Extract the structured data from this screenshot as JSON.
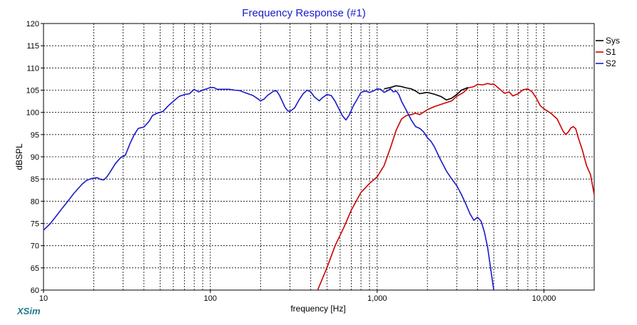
{
  "app": {
    "brand": "XSim"
  },
  "chart_data": {
    "type": "line",
    "title": "Frequency Response (#1)",
    "xlabel": "frequency [Hz]",
    "ylabel": "dBSPL",
    "x_scale": "log",
    "xlim": [
      10,
      20000
    ],
    "ylim": [
      60,
      120
    ],
    "x_tick_labels": [
      {
        "value": 10,
        "label": "10"
      },
      {
        "value": 100,
        "label": "100"
      },
      {
        "value": 1000,
        "label": "1,000"
      },
      {
        "value": 10000,
        "label": "10,000"
      }
    ],
    "y_ticks": [
      60,
      65,
      70,
      75,
      80,
      85,
      90,
      95,
      100,
      105,
      110,
      115,
      120
    ],
    "grid": true,
    "legend_position": "right",
    "series": [
      {
        "name": "Sys",
        "color": "#000000",
        "points": [
          [
            1100,
            105.3
          ],
          [
            1200,
            105.6
          ],
          [
            1300,
            106
          ],
          [
            1400,
            105.8
          ],
          [
            1500,
            105.5
          ],
          [
            1600,
            105.3
          ],
          [
            1700,
            104.8
          ],
          [
            1800,
            104.2
          ],
          [
            2000,
            104.5
          ],
          [
            2200,
            104.1
          ],
          [
            2400,
            103.6
          ],
          [
            2600,
            102.8
          ],
          [
            2800,
            103.2
          ],
          [
            3000,
            104
          ],
          [
            3200,
            105
          ],
          [
            3500,
            105.6
          ]
        ]
      },
      {
        "name": "S1",
        "color": "#cc0000",
        "points": [
          [
            440,
            60
          ],
          [
            500,
            65
          ],
          [
            560,
            70
          ],
          [
            630,
            74
          ],
          [
            700,
            78
          ],
          [
            800,
            82
          ],
          [
            900,
            84
          ],
          [
            1000,
            85.5
          ],
          [
            1100,
            88
          ],
          [
            1200,
            92
          ],
          [
            1300,
            96
          ],
          [
            1400,
            98.5
          ],
          [
            1500,
            99.3
          ],
          [
            1600,
            99.5
          ],
          [
            1700,
            99.8
          ],
          [
            1800,
            99.5
          ],
          [
            2000,
            100.6
          ],
          [
            2200,
            101.3
          ],
          [
            2500,
            102
          ],
          [
            2800,
            102.6
          ],
          [
            3000,
            103.6
          ],
          [
            3300,
            104.5
          ],
          [
            3500,
            105.5
          ],
          [
            3800,
            105.8
          ],
          [
            4000,
            106.3
          ],
          [
            4300,
            106.2
          ],
          [
            4600,
            106.5
          ],
          [
            4800,
            106.3
          ],
          [
            5000,
            106.4
          ],
          [
            5400,
            105.3
          ],
          [
            5800,
            104.3
          ],
          [
            6200,
            104.6
          ],
          [
            6500,
            103.7
          ],
          [
            7000,
            104.2
          ],
          [
            7500,
            105.1
          ],
          [
            8000,
            105.3
          ],
          [
            8500,
            104.6
          ],
          [
            9000,
            103.2
          ],
          [
            9500,
            101.5
          ],
          [
            10000,
            100.8
          ],
          [
            11000,
            99.8
          ],
          [
            12000,
            98.5
          ],
          [
            13000,
            95.8
          ],
          [
            13500,
            95
          ],
          [
            14000,
            95.6
          ],
          [
            14500,
            96.5
          ],
          [
            15000,
            96.8
          ],
          [
            15500,
            96.3
          ],
          [
            16000,
            94.5
          ],
          [
            17000,
            91.5
          ],
          [
            18000,
            88
          ],
          [
            19000,
            86
          ],
          [
            20000,
            81.5
          ]
        ]
      },
      {
        "name": "S2",
        "color": "#1a1acc",
        "points": [
          [
            10,
            73.5
          ],
          [
            11,
            75
          ],
          [
            12,
            76.8
          ],
          [
            13,
            78.5
          ],
          [
            14,
            80
          ],
          [
            15,
            81.5
          ],
          [
            16,
            82.7
          ],
          [
            17,
            83.8
          ],
          [
            18,
            84.6
          ],
          [
            19,
            85
          ],
          [
            20,
            85.2
          ],
          [
            21,
            85.3
          ],
          [
            22,
            84.9
          ],
          [
            23,
            84.8
          ],
          [
            24,
            85.5
          ],
          [
            25,
            86.5
          ],
          [
            27,
            88.5
          ],
          [
            29,
            89.8
          ],
          [
            31,
            90.4
          ],
          [
            33,
            93
          ],
          [
            35,
            95
          ],
          [
            37,
            96.4
          ],
          [
            40,
            96.7
          ],
          [
            43,
            98
          ],
          [
            45,
            99.3
          ],
          [
            48,
            99.8
          ],
          [
            52,
            100.2
          ],
          [
            56,
            101.5
          ],
          [
            60,
            102.5
          ],
          [
            65,
            103.6
          ],
          [
            70,
            104
          ],
          [
            75,
            104.2
          ],
          [
            80,
            105.2
          ],
          [
            85,
            104.6
          ],
          [
            90,
            105
          ],
          [
            95,
            105.3
          ],
          [
            100,
            105.6
          ],
          [
            105,
            105.6
          ],
          [
            110,
            105.2
          ],
          [
            120,
            105.2
          ],
          [
            130,
            105.2
          ],
          [
            140,
            105
          ],
          [
            150,
            104.9
          ],
          [
            160,
            104.5
          ],
          [
            180,
            103.8
          ],
          [
            190,
            103.2
          ],
          [
            200,
            102.6
          ],
          [
            210,
            103
          ],
          [
            220,
            103.8
          ],
          [
            240,
            104.8
          ],
          [
            250,
            104.8
          ],
          [
            260,
            103.8
          ],
          [
            270,
            102.5
          ],
          [
            280,
            101.2
          ],
          [
            290,
            100.4
          ],
          [
            300,
            100.2
          ],
          [
            320,
            101
          ],
          [
            340,
            102.8
          ],
          [
            360,
            104.2
          ],
          [
            380,
            105
          ],
          [
            400,
            104.6
          ],
          [
            420,
            103.5
          ],
          [
            450,
            102.6
          ],
          [
            470,
            103.3
          ],
          [
            500,
            104
          ],
          [
            530,
            103.8
          ],
          [
            560,
            102.5
          ],
          [
            590,
            100.8
          ],
          [
            620,
            99.2
          ],
          [
            650,
            98.3
          ],
          [
            680,
            99.4
          ],
          [
            720,
            101.5
          ],
          [
            760,
            103
          ],
          [
            800,
            104.5
          ],
          [
            850,
            104.8
          ],
          [
            900,
            104.5
          ],
          [
            950,
            104.8
          ],
          [
            1000,
            105.3
          ],
          [
            1050,
            105.2
          ],
          [
            1100,
            104.5
          ],
          [
            1150,
            104.8
          ],
          [
            1200,
            105.3
          ],
          [
            1250,
            104.6
          ],
          [
            1300,
            104.8
          ],
          [
            1350,
            104
          ],
          [
            1400,
            102.5
          ],
          [
            1500,
            100.4
          ],
          [
            1600,
            98.3
          ],
          [
            1700,
            96.8
          ],
          [
            1800,
            96.4
          ],
          [
            1900,
            95.6
          ],
          [
            2000,
            94.3
          ],
          [
            2100,
            93.5
          ],
          [
            2200,
            92.3
          ],
          [
            2400,
            89.3
          ],
          [
            2600,
            86.8
          ],
          [
            2800,
            85
          ],
          [
            3000,
            83.5
          ],
          [
            3200,
            81.5
          ],
          [
            3400,
            79.4
          ],
          [
            3600,
            77.2
          ],
          [
            3800,
            75.7
          ],
          [
            4000,
            76.4
          ],
          [
            4200,
            75.5
          ],
          [
            4400,
            73
          ],
          [
            4600,
            69.5
          ],
          [
            4800,
            64.5
          ],
          [
            5000,
            60
          ]
        ]
      }
    ]
  }
}
